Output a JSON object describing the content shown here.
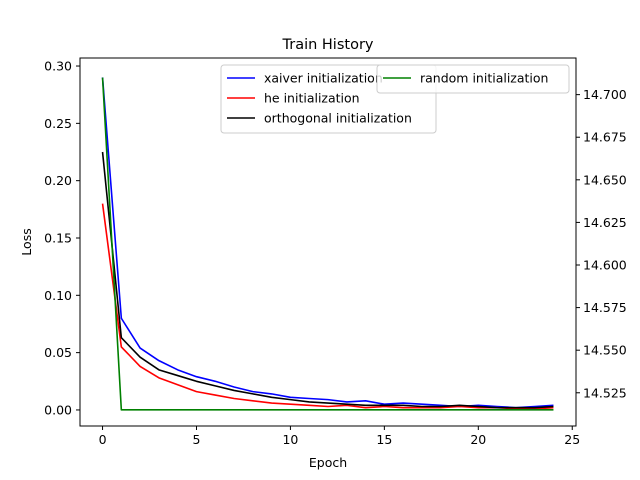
{
  "chart_data": {
    "type": "line",
    "title": "Train History",
    "xlabel": "Epoch",
    "ylabel": "Loss",
    "xlim": [
      -1.2,
      25.2
    ],
    "ylim": [
      -0.014,
      0.307
    ],
    "y2lim": [
      14.5055,
      14.7215
    ],
    "xticks": [
      0,
      5,
      10,
      15,
      20,
      25
    ],
    "xtick_labels": [
      "0",
      "5",
      "10",
      "15",
      "20",
      "25"
    ],
    "yticks": [
      0.0,
      0.05,
      0.1,
      0.15,
      0.2,
      0.25,
      0.3
    ],
    "ytick_labels": [
      "0.00",
      "0.05",
      "0.10",
      "0.15",
      "0.20",
      "0.25",
      "0.30"
    ],
    "y2ticks": [
      14.525,
      14.55,
      14.575,
      14.6,
      14.625,
      14.65,
      14.675,
      14.7
    ],
    "y2tick_labels": [
      "14.525",
      "14.550",
      "14.575",
      "14.600",
      "14.625",
      "14.650",
      "14.675",
      "14.700"
    ],
    "grid": false,
    "x": [
      0,
      1,
      2,
      3,
      4,
      5,
      6,
      7,
      8,
      9,
      10,
      11,
      12,
      13,
      14,
      15,
      16,
      17,
      18,
      19,
      20,
      21,
      22,
      23,
      24
    ],
    "series": [
      {
        "name": "xaiver initialization",
        "color": "#0000ff",
        "axis": "left",
        "values": [
          0.29,
          0.08,
          0.054,
          0.043,
          0.035,
          0.029,
          0.025,
          0.02,
          0.016,
          0.014,
          0.011,
          0.01,
          0.009,
          0.007,
          0.008,
          0.005,
          0.006,
          0.005,
          0.004,
          0.003,
          0.004,
          0.003,
          0.002,
          0.003,
          0.004
        ]
      },
      {
        "name": "he initialization",
        "color": "#ff0000",
        "axis": "left",
        "values": [
          0.18,
          0.055,
          0.038,
          0.028,
          0.022,
          0.016,
          0.013,
          0.01,
          0.008,
          0.006,
          0.005,
          0.004,
          0.003,
          0.004,
          0.002,
          0.003,
          0.002,
          0.002,
          0.002,
          0.003,
          0.002,
          0.002,
          0.001,
          0.001,
          0.002
        ]
      },
      {
        "name": "orthogonal initialization",
        "color": "#000000",
        "axis": "left",
        "values": [
          0.225,
          0.063,
          0.046,
          0.035,
          0.03,
          0.025,
          0.021,
          0.017,
          0.014,
          0.011,
          0.009,
          0.007,
          0.006,
          0.005,
          0.004,
          0.004,
          0.004,
          0.003,
          0.003,
          0.004,
          0.003,
          0.002,
          0.002,
          0.002,
          0.003
        ]
      },
      {
        "name": "random initialization",
        "color": "#008000",
        "axis": "right",
        "values": [
          14.71,
          14.515,
          14.515,
          14.515,
          14.515,
          14.515,
          14.515,
          14.515,
          14.515,
          14.515,
          14.515,
          14.515,
          14.515,
          14.515,
          14.515,
          14.515,
          14.515,
          14.515,
          14.515,
          14.515,
          14.515,
          14.515,
          14.515,
          14.515,
          14.515
        ]
      }
    ],
    "legends": [
      {
        "placement": "top-center",
        "entries": [
          "xaiver initialization",
          "he initialization",
          "orthogonal initialization"
        ]
      },
      {
        "placement": "top-right",
        "entries": [
          "random initialization"
        ]
      }
    ]
  }
}
